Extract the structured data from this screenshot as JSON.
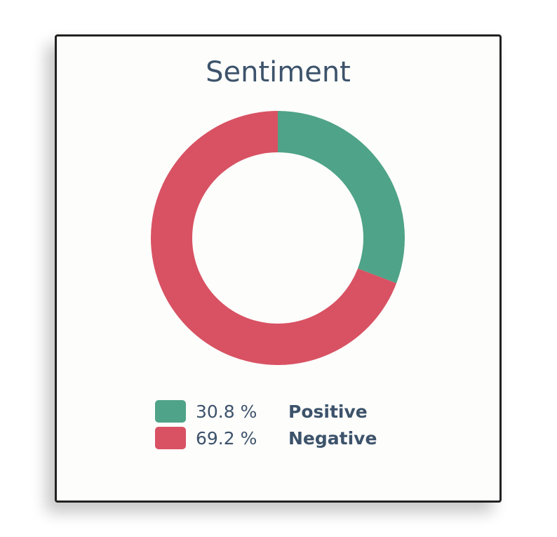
{
  "chart_data": {
    "type": "pie",
    "variant": "donut",
    "title": "Sentiment",
    "categories": [
      "Positive",
      "Negative"
    ],
    "values": [
      30.8,
      69.2
    ],
    "units": "%",
    "colors": [
      "#4fa388",
      "#d85263"
    ],
    "legend_position": "bottom"
  },
  "title": "Sentiment",
  "legend": [
    {
      "percent": "30.8 %",
      "label": "Positive",
      "color": "#4fa388"
    },
    {
      "percent": "69.2 %",
      "label": "Negative",
      "color": "#d85263"
    }
  ]
}
